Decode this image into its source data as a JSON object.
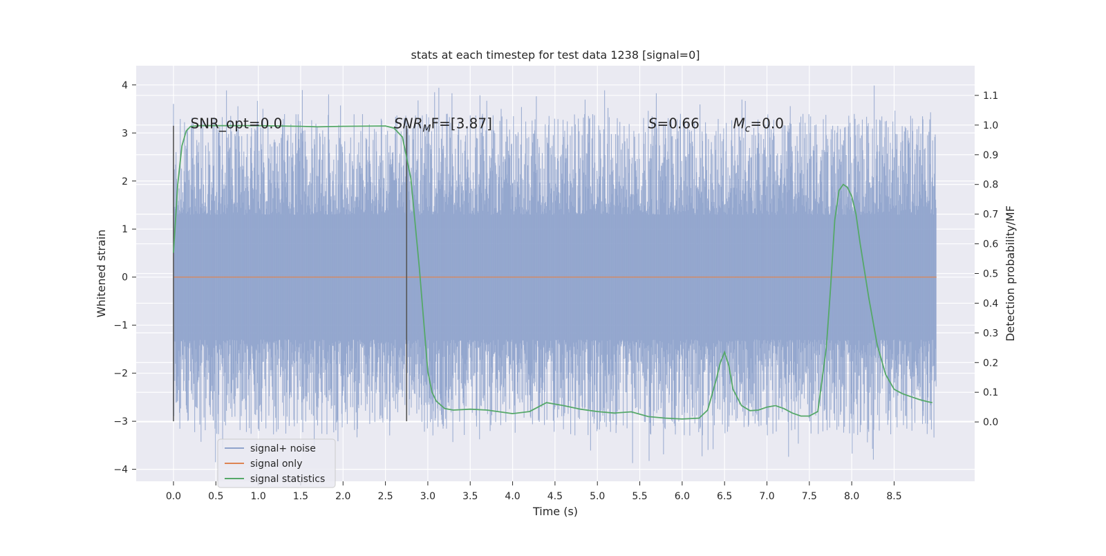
{
  "chart_data": {
    "type": "line",
    "title": "stats at each timestep for test data 1238 [signal=0]",
    "xlabel": "Time (s)",
    "ylabel_left": "Whitened strain",
    "ylabel_right": "Detection probability/MF",
    "xlim": [
      -0.44,
      9.45
    ],
    "ylim_left": [
      -4.25,
      4.4
    ],
    "ylim_right": [
      -0.2,
      1.2
    ],
    "x_ticks": [
      0.0,
      0.5,
      1.0,
      1.5,
      2.0,
      2.5,
      3.0,
      3.5,
      4.0,
      4.5,
      5.0,
      5.5,
      6.0,
      6.5,
      7.0,
      7.5,
      8.0,
      8.5
    ],
    "x_tick_labels": [
      "0.0",
      "0.5",
      "1.0",
      "1.5",
      "2.0",
      "2.5",
      "3.0",
      "3.5",
      "4.0",
      "4.5",
      "5.0",
      "5.5",
      "6.0",
      "6.5",
      "7.0",
      "7.5",
      "8.0",
      "8.5"
    ],
    "y_left_ticks": [
      -4,
      -3,
      -2,
      -1,
      0,
      1,
      2,
      3,
      4
    ],
    "y_left_tick_labels": [
      "−4",
      "−3",
      "−2",
      "−1",
      "0",
      "1",
      "2",
      "3",
      "4"
    ],
    "y_right_ticks": [
      0.0,
      0.1,
      0.2,
      0.3,
      0.4,
      0.5,
      0.6,
      0.7,
      0.8,
      0.9,
      1.0,
      1.1
    ],
    "y_right_tick_labels": [
      "0.0",
      "0.1",
      "0.2",
      "0.3",
      "0.4",
      "0.5",
      "0.6",
      "0.7",
      "0.8",
      "0.9",
      "1.0",
      "1.1"
    ],
    "grid": true,
    "colors": {
      "background": "#eaeaf2",
      "grid": "#ffffff",
      "noise": "#8fa3cc",
      "signal": "#dd8452",
      "statistics": "#55a868",
      "markers": "#555555"
    },
    "series": [
      {
        "name": "signal+ noise",
        "axis": "left",
        "x_range": [
          0.0,
          9.0
        ],
        "samples": 1800,
        "envelope_upper": 3.4,
        "envelope_lower": -3.3,
        "peak_upper": 4.0,
        "peak_lower": -3.9
      },
      {
        "name": "signal only",
        "axis": "left",
        "x": [
          0.0,
          9.0
        ],
        "y": [
          0.0,
          0.0
        ]
      },
      {
        "name": "signal statistics",
        "axis": "right",
        "x": [
          0.0,
          0.05,
          0.1,
          0.15,
          0.2,
          0.3,
          0.5,
          1.0,
          1.5,
          1.7,
          2.0,
          2.5,
          2.6,
          2.7,
          2.8,
          2.9,
          3.0,
          3.05,
          3.1,
          3.2,
          3.3,
          3.5,
          3.7,
          4.0,
          4.2,
          4.4,
          4.6,
          4.8,
          5.0,
          5.2,
          5.4,
          5.6,
          5.8,
          6.0,
          6.2,
          6.3,
          6.4,
          6.45,
          6.5,
          6.55,
          6.6,
          6.7,
          6.8,
          6.9,
          7.0,
          7.1,
          7.2,
          7.3,
          7.4,
          7.5,
          7.6,
          7.7,
          7.75,
          7.8,
          7.85,
          7.9,
          7.95,
          8.0,
          8.05,
          8.1,
          8.2,
          8.3,
          8.4,
          8.5,
          8.6,
          8.7,
          8.8,
          8.9,
          8.95
        ],
        "y": [
          0.57,
          0.8,
          0.93,
          0.98,
          0.995,
          0.998,
          0.998,
          0.998,
          0.996,
          0.994,
          0.996,
          0.997,
          0.99,
          0.96,
          0.82,
          0.52,
          0.17,
          0.1,
          0.07,
          0.045,
          0.04,
          0.043,
          0.04,
          0.028,
          0.035,
          0.065,
          0.055,
          0.043,
          0.035,
          0.03,
          0.034,
          0.018,
          0.013,
          0.01,
          0.013,
          0.04,
          0.14,
          0.2,
          0.235,
          0.19,
          0.11,
          0.055,
          0.038,
          0.04,
          0.05,
          0.055,
          0.045,
          0.03,
          0.02,
          0.02,
          0.035,
          0.25,
          0.45,
          0.68,
          0.78,
          0.8,
          0.79,
          0.76,
          0.7,
          0.6,
          0.42,
          0.26,
          0.16,
          0.11,
          0.095,
          0.085,
          0.075,
          0.068,
          0.065
        ]
      }
    ],
    "marker_lines": [
      {
        "x": 0.0,
        "ymin": -3.0,
        "ymax": 3.15
      },
      {
        "x": 2.75,
        "ymin": -3.0,
        "ymax": 3.15
      }
    ],
    "annotations": [
      {
        "id": "snr-opt",
        "x": 0.2,
        "y": 3.1,
        "text": "SNR_opt=0.0"
      },
      {
        "id": "snr-mf",
        "x": 2.6,
        "y": 3.1,
        "base": "SNR",
        "sub": "M",
        "rest": "F=[3.87]"
      },
      {
        "id": "s-value",
        "x": 5.6,
        "y": 3.1,
        "base": "S",
        "rest": "=0.66"
      },
      {
        "id": "mc-value",
        "x": 6.6,
        "y": 3.1,
        "base": "M",
        "sub": "c",
        "rest": "=0.0"
      }
    ],
    "legend": {
      "placement": "lower-left",
      "entries": [
        "signal+ noise",
        "signal only",
        "signal statistics"
      ]
    }
  }
}
